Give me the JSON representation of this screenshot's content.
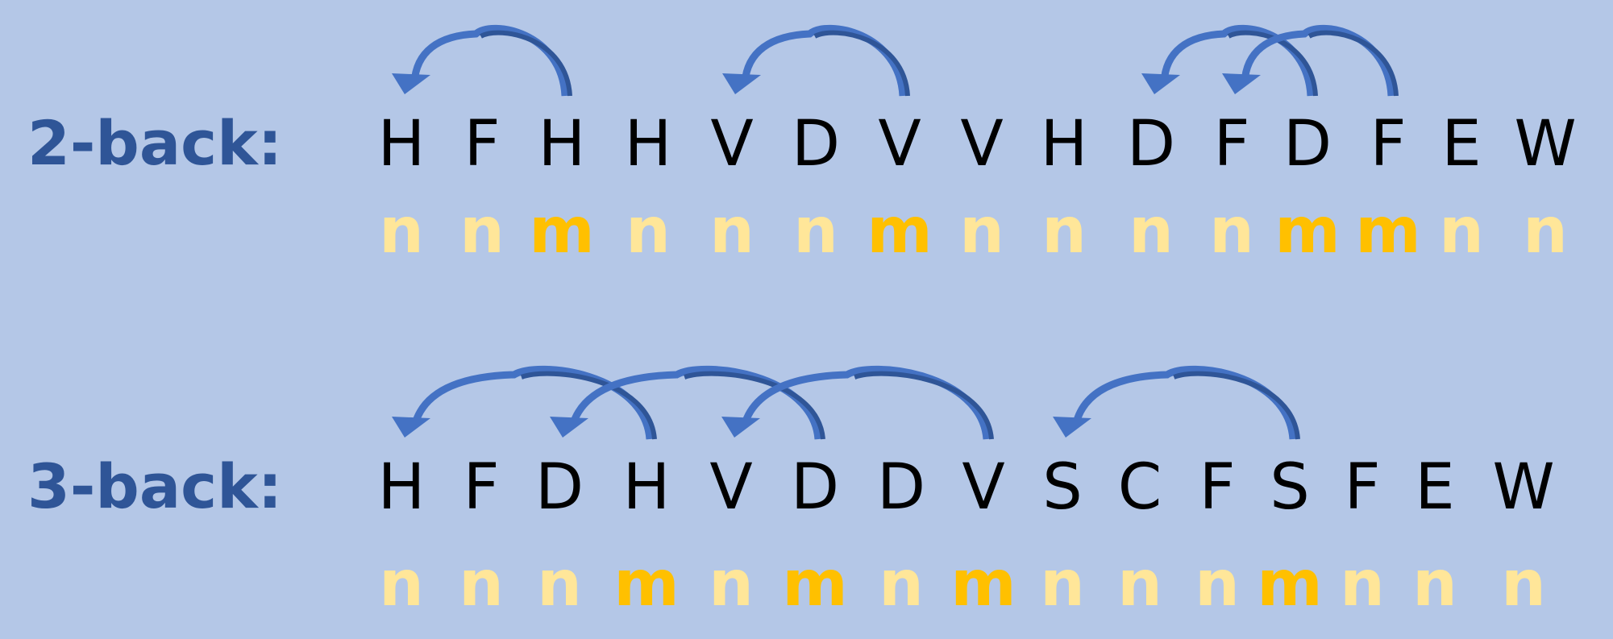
{
  "colors": {
    "background": "#b4c7e7",
    "label": "#2f5597",
    "letter": "#000000",
    "match": "#ffc000",
    "nonmatch": "#ffe699",
    "arrow": "#4472c4",
    "arrow_dark": "#2f5597"
  },
  "rows": [
    {
      "label": "2-back:",
      "n": 2,
      "letters": [
        "H",
        "F",
        "H",
        "H",
        "V",
        "D",
        "V",
        "V",
        "H",
        "D",
        "F",
        "D",
        "F",
        "E",
        "W"
      ],
      "responses": [
        "n",
        "n",
        "m",
        "n",
        "n",
        "n",
        "m",
        "n",
        "n",
        "n",
        "n",
        "m",
        "m",
        "n",
        "n"
      ]
    },
    {
      "label": "3-back:",
      "n": 3,
      "letters": [
        "H",
        "F",
        "D",
        "H",
        "V",
        "D",
        "D",
        "V",
        "S",
        "C",
        "F",
        "S",
        "F",
        "E",
        "W"
      ],
      "responses": [
        "n",
        "n",
        "n",
        "m",
        "n",
        "m",
        "n",
        "m",
        "n",
        "n",
        "n",
        "m",
        "n",
        "n",
        "n"
      ]
    }
  ],
  "arrow_icon": "curved-arrow-icon"
}
